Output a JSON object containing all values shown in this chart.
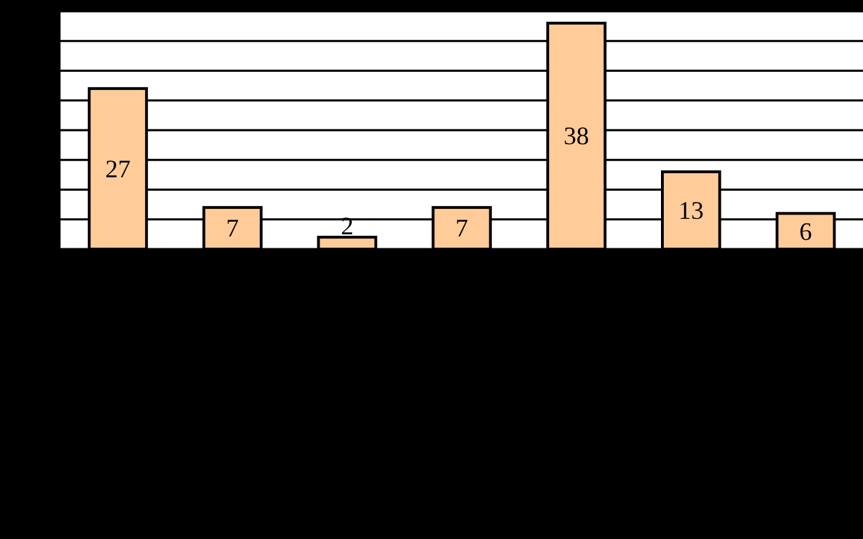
{
  "chart_data": {
    "type": "bar",
    "categories": [
      null,
      null,
      null,
      null,
      null,
      null,
      null
    ],
    "values": [
      27,
      7,
      2,
      7,
      38,
      13,
      6
    ],
    "color": "#ffcc99",
    "ylim": [
      0,
      40
    ],
    "yticks": [
      {
        "value": 0,
        "label": null
      },
      {
        "value": 5,
        "label": null
      },
      {
        "value": 10,
        "label": null
      },
      {
        "value": 15,
        "label": null
      },
      {
        "value": 20,
        "label": null
      },
      {
        "value": 25,
        "label": null
      },
      {
        "value": 30,
        "label": null
      },
      {
        "value": 35,
        "label": null
      },
      {
        "value": 40,
        "label": null
      }
    ],
    "grid": "y",
    "data_labels": true
  }
}
